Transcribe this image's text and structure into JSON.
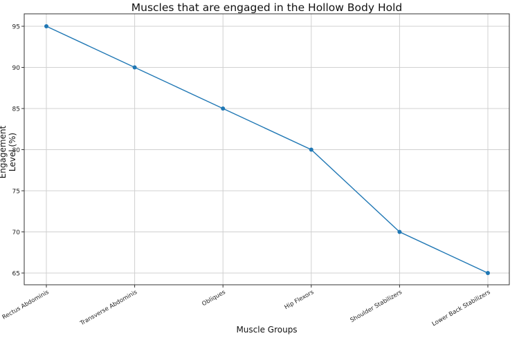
{
  "chart_data": {
    "type": "line",
    "title": "Muscles that are engaged in the Hollow Body Hold",
    "xlabel": "Muscle Groups",
    "ylabel": "Engagement Level (%)",
    "categories": [
      "Rectus Abdominis",
      "Transverse Abdominis",
      "Obliques",
      "Hip Flexors",
      "Shoulder Stabilizers",
      "Lower Back Stabilizers"
    ],
    "values": [
      95,
      90,
      85,
      80,
      70,
      65
    ],
    "yticks": [
      65,
      70,
      75,
      80,
      85,
      90,
      95
    ],
    "ylim": [
      63.5,
      96.5
    ],
    "grid": true,
    "marker": "circle",
    "color": "#1f77b4",
    "xtick_rotation": 30
  }
}
